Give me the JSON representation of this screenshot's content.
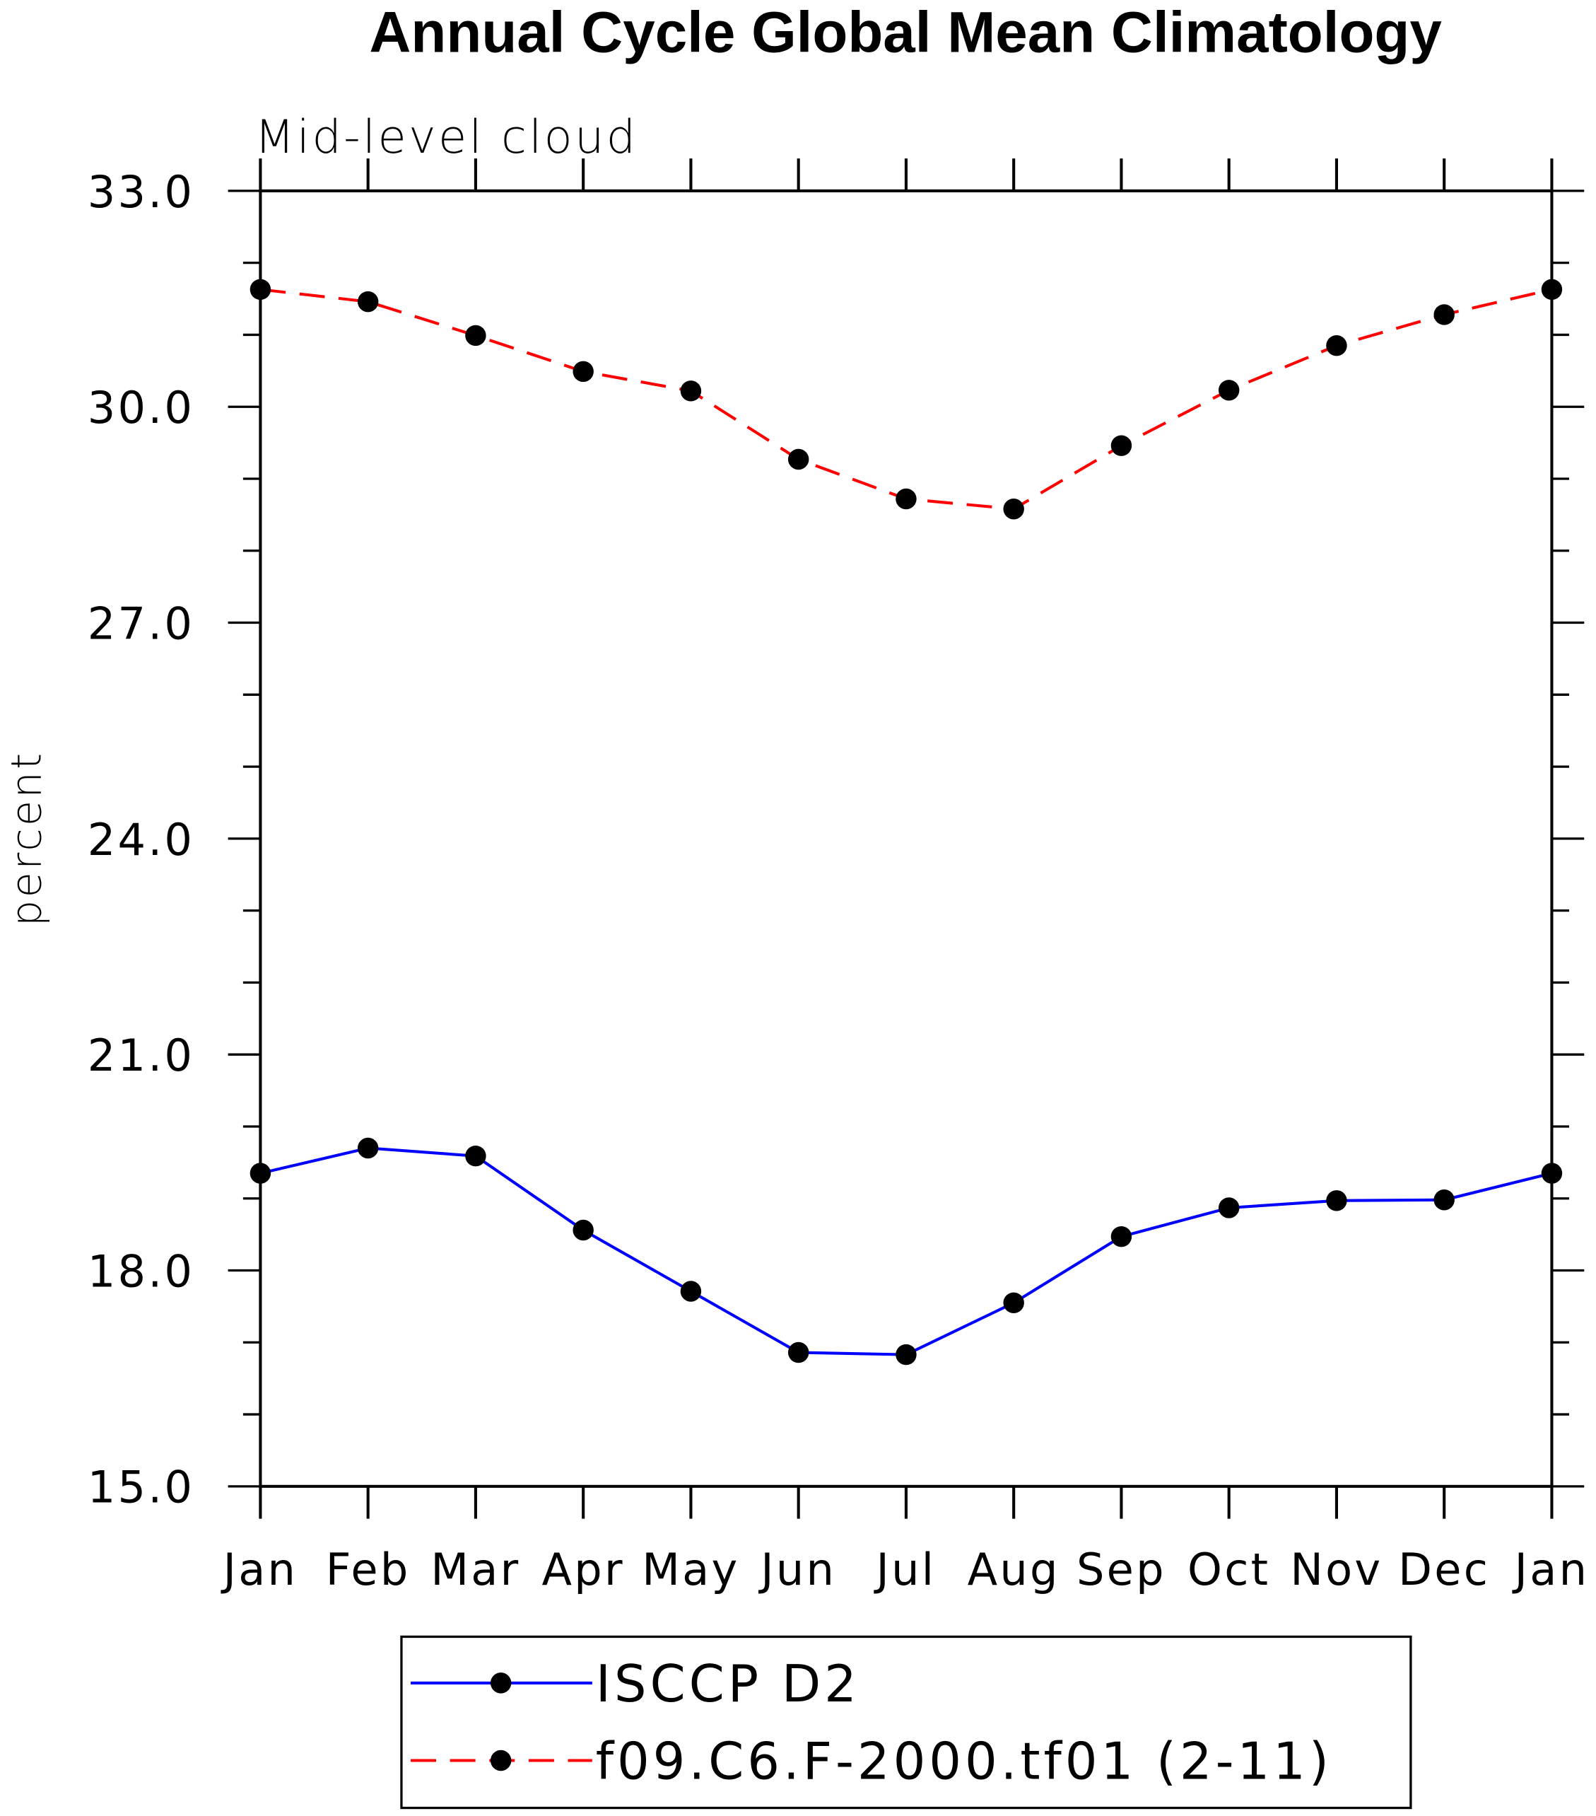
{
  "chart_data": {
    "type": "line",
    "title": "Annual Cycle Global Mean Climatology",
    "subtitle": "Mid-level cloud",
    "xlabel": "",
    "ylabel": "percent",
    "categories": [
      "Jan",
      "Feb",
      "Mar",
      "Apr",
      "May",
      "Jun",
      "Jul",
      "Aug",
      "Sep",
      "Oct",
      "Nov",
      "Dec",
      "Jan"
    ],
    "ylim": [
      15.0,
      33.0
    ],
    "yticks": [
      "15.0",
      "18.0",
      "21.0",
      "24.0",
      "27.0",
      "30.0",
      "33.0"
    ],
    "ytick_values": [
      15,
      18,
      21,
      24,
      27,
      30,
      33
    ],
    "grid": false,
    "legend_position": "bottom",
    "series": [
      {
        "name": "ISCCP D2",
        "color": "#0000ff",
        "dash": "solid",
        "values": [
          19.35,
          19.7,
          19.59,
          18.56,
          17.71,
          16.86,
          16.83,
          17.55,
          18.47,
          18.87,
          18.97,
          18.98,
          19.35
        ]
      },
      {
        "name": "f09.C6.F-2000.tf01 (2-11)",
        "color": "#ff0000",
        "dash": "dashed",
        "values": [
          31.63,
          31.46,
          30.99,
          30.49,
          30.22,
          29.27,
          28.72,
          28.58,
          29.46,
          30.23,
          30.85,
          31.28,
          31.63
        ]
      }
    ]
  }
}
